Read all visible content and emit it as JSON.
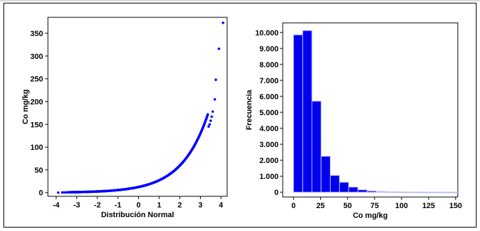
{
  "colors": {
    "marker": "#0000ff",
    "bar_fill": "#0000ee",
    "bar_edge": "#b8b8ff",
    "axis": "#000000"
  },
  "chart_data": [
    {
      "type": "scatter",
      "title": "",
      "xlabel": "Distribución Normal",
      "ylabel": "Co mg/kg",
      "xlim": [
        -4.4,
        4.3
      ],
      "ylim": [
        -8,
        385
      ],
      "xticks": [
        -4,
        -3,
        -2,
        -1,
        0,
        1,
        2,
        3,
        4
      ],
      "xtick_labels": [
        "-4",
        "-3",
        "-2",
        "-1",
        "0",
        "1",
        "2",
        "3",
        "4"
      ],
      "yticks": [
        0,
        50,
        100,
        150,
        200,
        250,
        300,
        350
      ],
      "ytick_labels": [
        "0",
        "50",
        "100",
        "150",
        "200",
        "250",
        "300",
        "350"
      ],
      "grid": false,
      "points": [
        [
          -3.9,
          0.2
        ],
        [
          -3.7,
          0.4
        ],
        [
          -3.6,
          0.5
        ],
        [
          -3.5,
          0.6
        ],
        [
          3.4,
          145
        ],
        [
          3.45,
          150
        ],
        [
          3.5,
          158
        ],
        [
          3.55,
          167
        ],
        [
          3.6,
          178
        ],
        [
          3.7,
          205
        ],
        [
          3.75,
          248
        ],
        [
          3.9,
          316
        ],
        [
          4.1,
          373
        ]
      ],
      "curve_params": {
        "median": 12.5,
        "scale": 0.78,
        "x_start": -3.4,
        "x_end": 3.38
      }
    },
    {
      "type": "bar",
      "title": "",
      "xlabel": "Co mg/kg",
      "ylabel": "Frecuencia",
      "xlim": [
        -10,
        152
      ],
      "ylim": [
        -300,
        10600
      ],
      "xticks": [
        0,
        25,
        50,
        75,
        100,
        125,
        150
      ],
      "xtick_labels": [
        "0",
        "25",
        "50",
        "75",
        "100",
        "125",
        "150"
      ],
      "yticks": [
        0,
        1000,
        2000,
        3000,
        4000,
        5000,
        6000,
        7000,
        8000,
        9000,
        10000
      ],
      "ytick_labels": [
        "0",
        "1.000",
        "2.000",
        "3.000",
        "4.000",
        "5.000",
        "6.000",
        "7.000",
        "8.000",
        "9.000",
        "10.000"
      ],
      "grid": false,
      "bin_width": 8.5,
      "bin_start": 0,
      "values": [
        9850,
        10120,
        5700,
        2250,
        1050,
        620,
        320,
        150,
        80,
        45,
        25,
        15,
        10,
        6,
        4,
        3,
        2,
        2
      ]
    }
  ]
}
